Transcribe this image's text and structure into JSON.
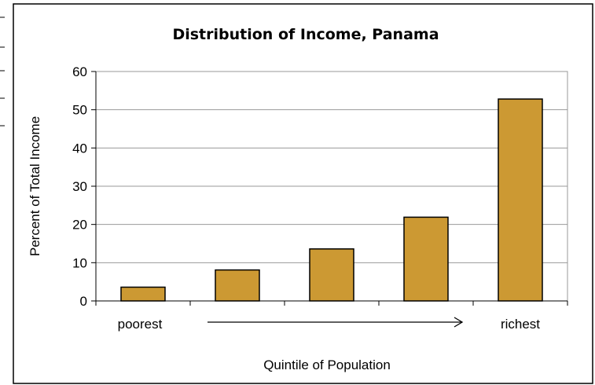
{
  "chart_data": {
    "type": "bar",
    "title": "Distribution of Income, Panama",
    "ylabel": "Percent of Total Income",
    "xlabel": "Quintile of Population",
    "categories": [
      "",
      "",
      "",
      "",
      ""
    ],
    "values": [
      3.6,
      8.1,
      13.6,
      21.9,
      52.8
    ],
    "ylim": [
      0,
      60
    ],
    "yticks": [
      0,
      10,
      20,
      30,
      40,
      50,
      60
    ],
    "grid": true,
    "bar_color": "#cc9933",
    "annotations": {
      "left_label": "poorest",
      "right_label": "richest"
    }
  }
}
